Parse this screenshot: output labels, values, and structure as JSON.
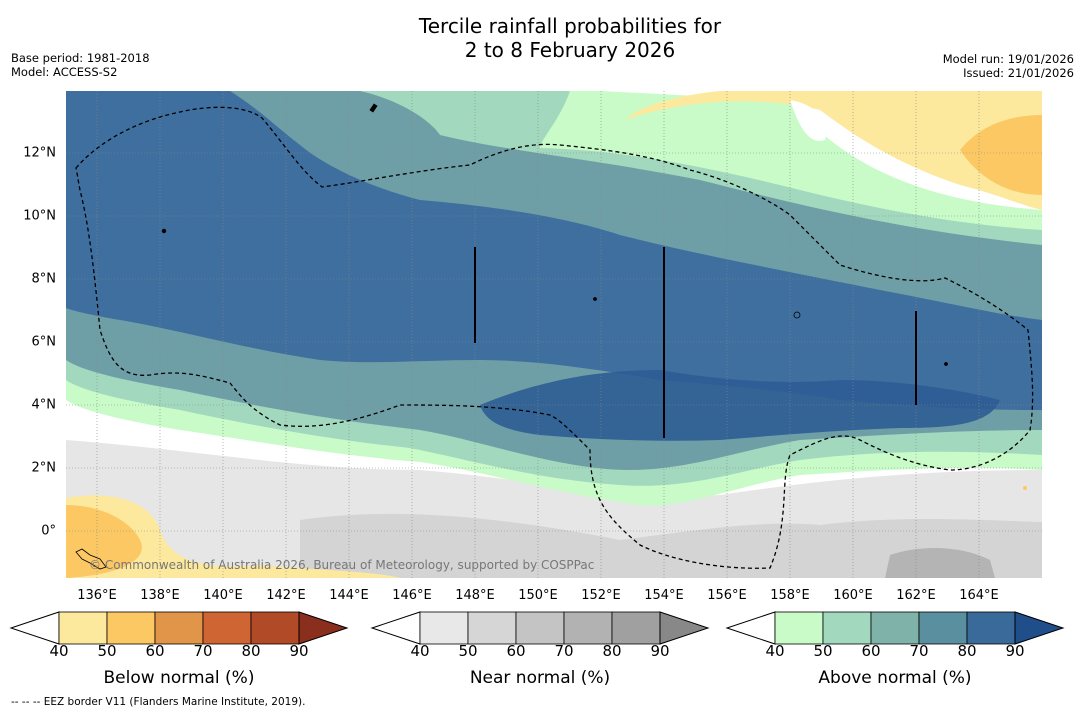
{
  "title_line1": "Tercile rainfall probabilities for",
  "title_line2": "2 to 8 February 2026",
  "base_period": "Base period: 1981-2018",
  "model": "Model: ACCESS-S2",
  "model_run": "Model run: 19/01/2026",
  "issued": "Issued: 21/01/2026",
  "x_ticks": [
    "136°E",
    "138°E",
    "140°E",
    "142°E",
    "144°E",
    "146°E",
    "148°E",
    "150°E",
    "152°E",
    "154°E",
    "156°E",
    "158°E",
    "160°E",
    "162°E",
    "164°E"
  ],
  "y_ticks": [
    "12°N",
    "10°N",
    "8°N",
    "6°N",
    "4°N",
    "2°N",
    "0°"
  ],
  "credit": "© Commonwealth of Australia 2026, Bureau of Meteorology, supported by COSPPac",
  "footnote": "--  --  -- EEZ border V11 (Flanders Marine Institute, 2019).",
  "colorbars": [
    {
      "label": "Below normal (%)",
      "ticks": [
        "40",
        "50",
        "60",
        "70",
        "80",
        "90"
      ],
      "colors": [
        "#ffffff",
        "#fde99d",
        "#fcc864",
        "#e09548",
        "#cf6533",
        "#b14a26",
        "#8a2e1d"
      ]
    },
    {
      "label": "Near normal (%)",
      "ticks": [
        "40",
        "50",
        "60",
        "70",
        "80",
        "90"
      ],
      "colors": [
        "#ffffff",
        "#e8e8e8",
        "#d6d6d6",
        "#c4c4c4",
        "#b2b2b2",
        "#a0a0a0",
        "#888888"
      ]
    },
    {
      "label": "Above normal (%)",
      "ticks": [
        "40",
        "50",
        "60",
        "70",
        "80",
        "90"
      ],
      "colors": [
        "#ffffff",
        "#c8fbc8",
        "#a2d8bd",
        "#7fb3aa",
        "#5a8fa0",
        "#3a6a99",
        "#1f4e8a"
      ]
    }
  ],
  "colors": {
    "above_50": "#c8fbc8",
    "above_60": "#a2d8bd",
    "above_70": "#6f9fa6",
    "above_80": "#3f6f9f",
    "above_90": "#2e5c95",
    "below_50": "#fde99d",
    "below_60": "#fcc864",
    "near_50": "#e8e8e8",
    "near_60": "#d6d6d6",
    "near_70": "#b4b4b4"
  }
}
